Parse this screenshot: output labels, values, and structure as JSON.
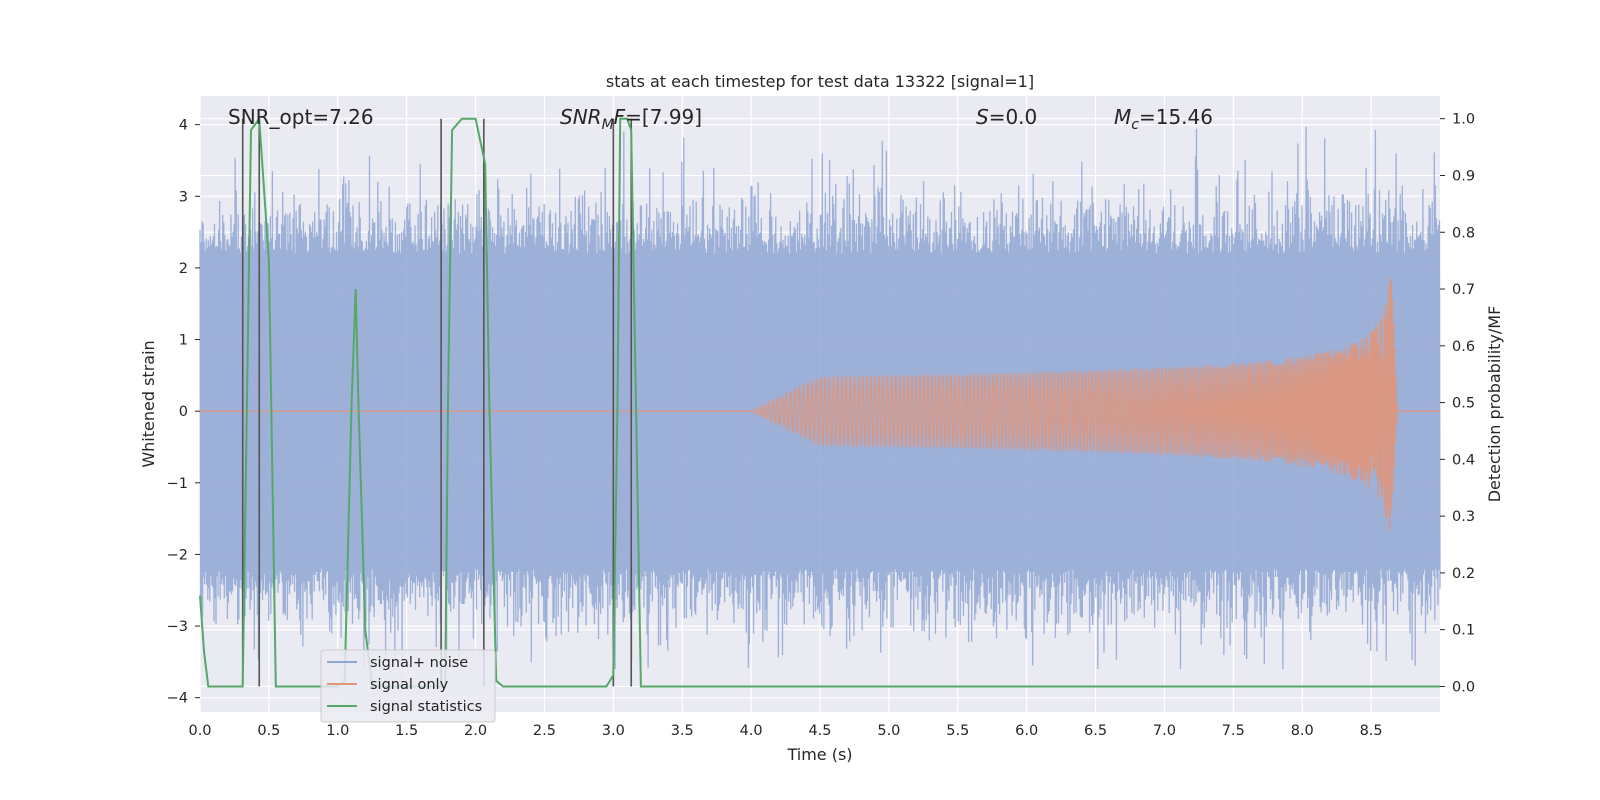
{
  "chart_data": {
    "type": "line",
    "title": "stats at each timestep for test data 13322 [signal=1]",
    "xlabel": "Time (s)",
    "ylabel": "Whitened strain",
    "y2label": "Detection probability/MF",
    "xlim": [
      0,
      9.0
    ],
    "ylim": [
      -4.2,
      4.4
    ],
    "y2lim": [
      -0.045,
      1.04
    ],
    "xticks": [
      "0.0",
      "0.5",
      "1.0",
      "1.5",
      "2.0",
      "2.5",
      "3.0",
      "3.5",
      "4.0",
      "4.5",
      "5.0",
      "5.5",
      "6.0",
      "6.5",
      "7.0",
      "7.5",
      "8.0",
      "8.5"
    ],
    "yticks": [
      "4",
      "3",
      "2",
      "1",
      "0",
      "−1",
      "−2",
      "−3",
      "−4"
    ],
    "y2ticks": [
      "1.0",
      "0.9",
      "0.8",
      "0.7",
      "0.6",
      "0.5",
      "0.4",
      "0.3",
      "0.2",
      "0.1",
      "0.0"
    ],
    "grid": true,
    "legend_position": "lower-left",
    "annotations": {
      "snr_opt": "SNR_opt=7.26",
      "snr_mf_sym": "SNR",
      "snr_mf_sub": "M",
      "snr_mf_f": "F",
      "snr_mf_val": "=[7.99]",
      "s_sym": "S",
      "s_val": "=0.0",
      "mc_sym": "M",
      "mc_sub": "c",
      "mc_val": "=15.46"
    },
    "vlines": [
      {
        "x": 0.31,
        "y2_top": 1.0
      },
      {
        "x": 0.43,
        "y2_top": 1.0
      },
      {
        "x": 1.75,
        "y2_top": 1.0
      },
      {
        "x": 2.06,
        "y2_top": 1.0
      },
      {
        "x": 3.0,
        "y2_top": 1.0
      },
      {
        "x": 3.13,
        "y2_top": 1.0
      }
    ],
    "series": [
      {
        "name": "signal+ noise",
        "color": "#8fa6d3",
        "axis": "left",
        "envelope": [
          -2.2,
          2.2
        ],
        "noise_std": 1.0,
        "peak_range": [
          -3.6,
          4.05
        ]
      },
      {
        "name": "signal only",
        "color": "#e1967a",
        "axis": "left",
        "chirp_start": 4.0,
        "merger_time": 8.65,
        "peak_amplitude": 1.85
      },
      {
        "name": "signal statistics",
        "color": "#55a868",
        "axis": "right",
        "x": [
          0.0,
          0.03,
          0.06,
          0.3,
          0.31,
          0.37,
          0.43,
          0.5,
          0.55,
          0.9,
          1.0,
          1.05,
          1.1,
          1.13,
          1.15,
          1.2,
          1.25,
          1.35,
          1.55,
          1.7,
          1.78,
          1.8,
          1.83,
          1.9,
          2.0,
          2.07,
          2.1,
          2.15,
          2.2,
          2.3,
          2.65,
          2.85,
          2.95,
          3.0,
          3.03,
          3.05,
          3.1,
          3.13,
          3.2,
          3.25,
          3.5,
          4.0,
          4.2,
          4.5,
          5.0,
          6.0,
          7.0,
          8.0,
          8.5,
          9.0
        ],
        "y": [
          0.16,
          0.06,
          0.0,
          0.0,
          0.0,
          0.98,
          1.0,
          0.75,
          0.0,
          0.0,
          0.0,
          0.01,
          0.5,
          0.7,
          0.5,
          0.1,
          0.0,
          0.0,
          0.0,
          0.0,
          0.0,
          0.5,
          0.98,
          1.0,
          1.0,
          0.92,
          0.5,
          0.01,
          0.0,
          0.0,
          0.0,
          0.0,
          0.0,
          0.02,
          0.5,
          1.0,
          1.0,
          0.98,
          0.0,
          0.0,
          0.0,
          0.0,
          0.0,
          0.0,
          0.0,
          0.0,
          0.0,
          0.0,
          0.0,
          0.0
        ]
      }
    ]
  }
}
